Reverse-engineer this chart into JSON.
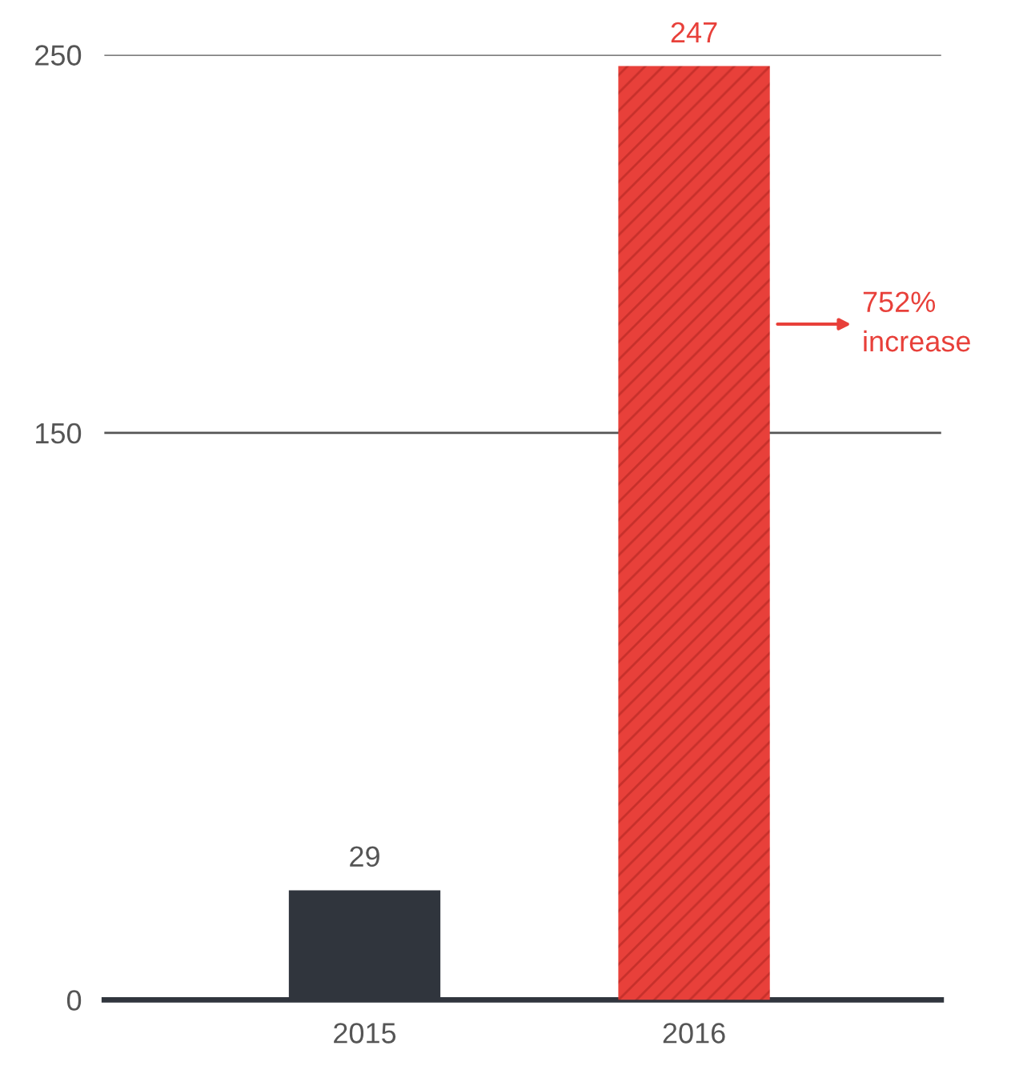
{
  "chart_data": {
    "type": "bar",
    "categories": [
      "2015",
      "2016"
    ],
    "values": [
      29,
      247
    ],
    "colors": [
      "#30353d",
      "#e8403a"
    ],
    "ylim": [
      0,
      250
    ],
    "yticks": [
      0,
      150,
      250
    ],
    "grid": "y",
    "data_labels": true,
    "annotations": [
      "752%\nincrease"
    ]
  }
}
